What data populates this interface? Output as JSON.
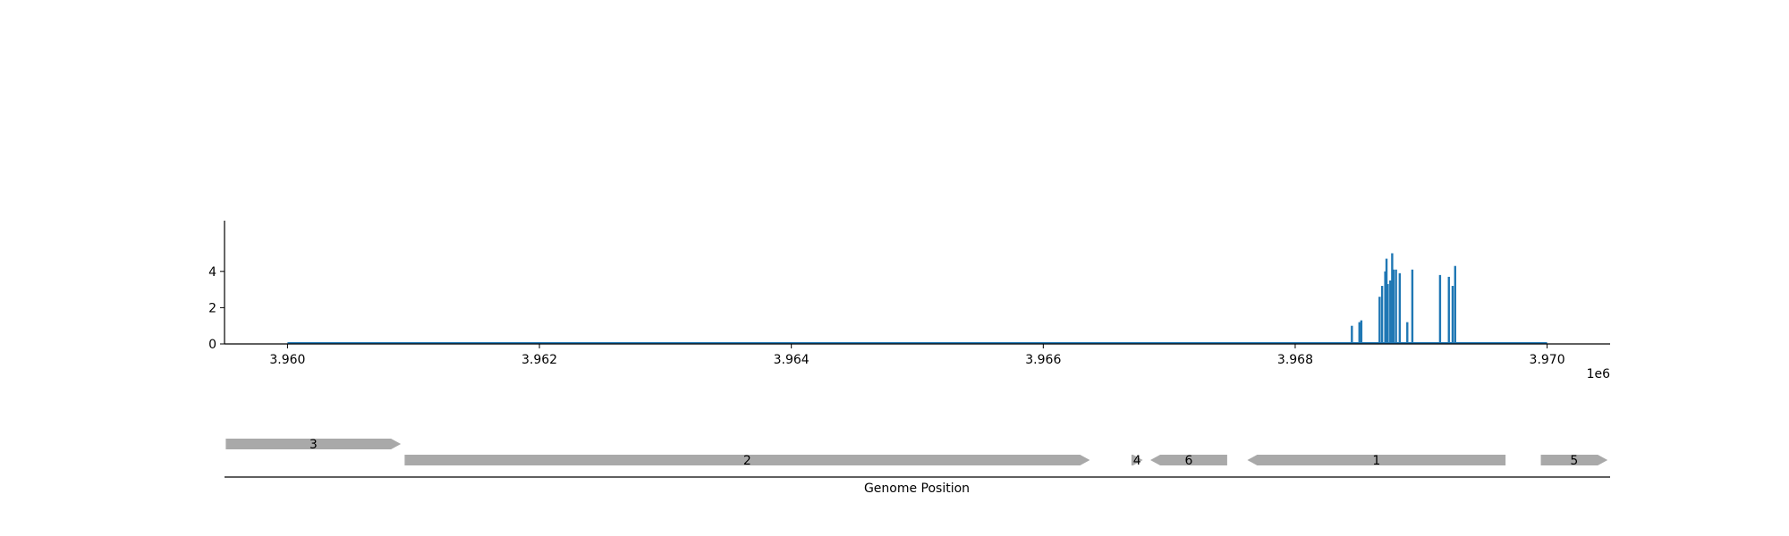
{
  "chart_data": [
    {
      "type": "bar",
      "title": "",
      "xlabel": "",
      "ylabel": "",
      "xlim": [
        3959500,
        3970500
      ],
      "ylim": [
        0,
        5.4
      ],
      "x_ticks": [
        3960000,
        3962000,
        3964000,
        3966000,
        3968000,
        3970000
      ],
      "x_tick_labels": [
        "3.960",
        "3.962",
        "3.964",
        "3.966",
        "3.968",
        "3.970"
      ],
      "x_offset_label": "1e6",
      "y_ticks": [
        0,
        2,
        4
      ],
      "y_tick_labels": [
        "0",
        "2",
        "4"
      ],
      "baseline_range": [
        3960000,
        3970000
      ],
      "bar_color": "#1f77b4",
      "x": [
        3968450,
        3968510,
        3968525,
        3968670,
        3968690,
        3968715,
        3968725,
        3968735,
        3968755,
        3968770,
        3968780,
        3968800,
        3968830,
        3968890,
        3968930,
        3969150,
        3969220,
        3969250,
        3969270
      ],
      "values": [
        1.0,
        1.2,
        1.3,
        2.6,
        3.2,
        4.0,
        4.7,
        3.3,
        3.5,
        5.0,
        4.1,
        4.1,
        3.9,
        1.2,
        4.1,
        3.8,
        3.7,
        3.2,
        4.3
      ]
    },
    {
      "type": "gene-track",
      "xlabel": "Genome Position",
      "xlim": [
        3959500,
        3970500
      ],
      "gene_color": "#a9a9a9",
      "genes": [
        {
          "label": "3",
          "start": 3959510,
          "end": 3960900,
          "strand": "+",
          "row": "upper"
        },
        {
          "label": "2",
          "start": 3960930,
          "end": 3966370,
          "strand": "+",
          "row": "lower"
        },
        {
          "label": "4",
          "start": 3966700,
          "end": 3966790,
          "strand": "+",
          "row": "lower"
        },
        {
          "label": "6",
          "start": 3966850,
          "end": 3967460,
          "strand": "-",
          "row": "lower"
        },
        {
          "label": "1",
          "start": 3967620,
          "end": 3969670,
          "strand": "-",
          "row": "lower"
        },
        {
          "label": "5",
          "start": 3969950,
          "end": 3970480,
          "strand": "+",
          "row": "lower"
        }
      ]
    }
  ]
}
